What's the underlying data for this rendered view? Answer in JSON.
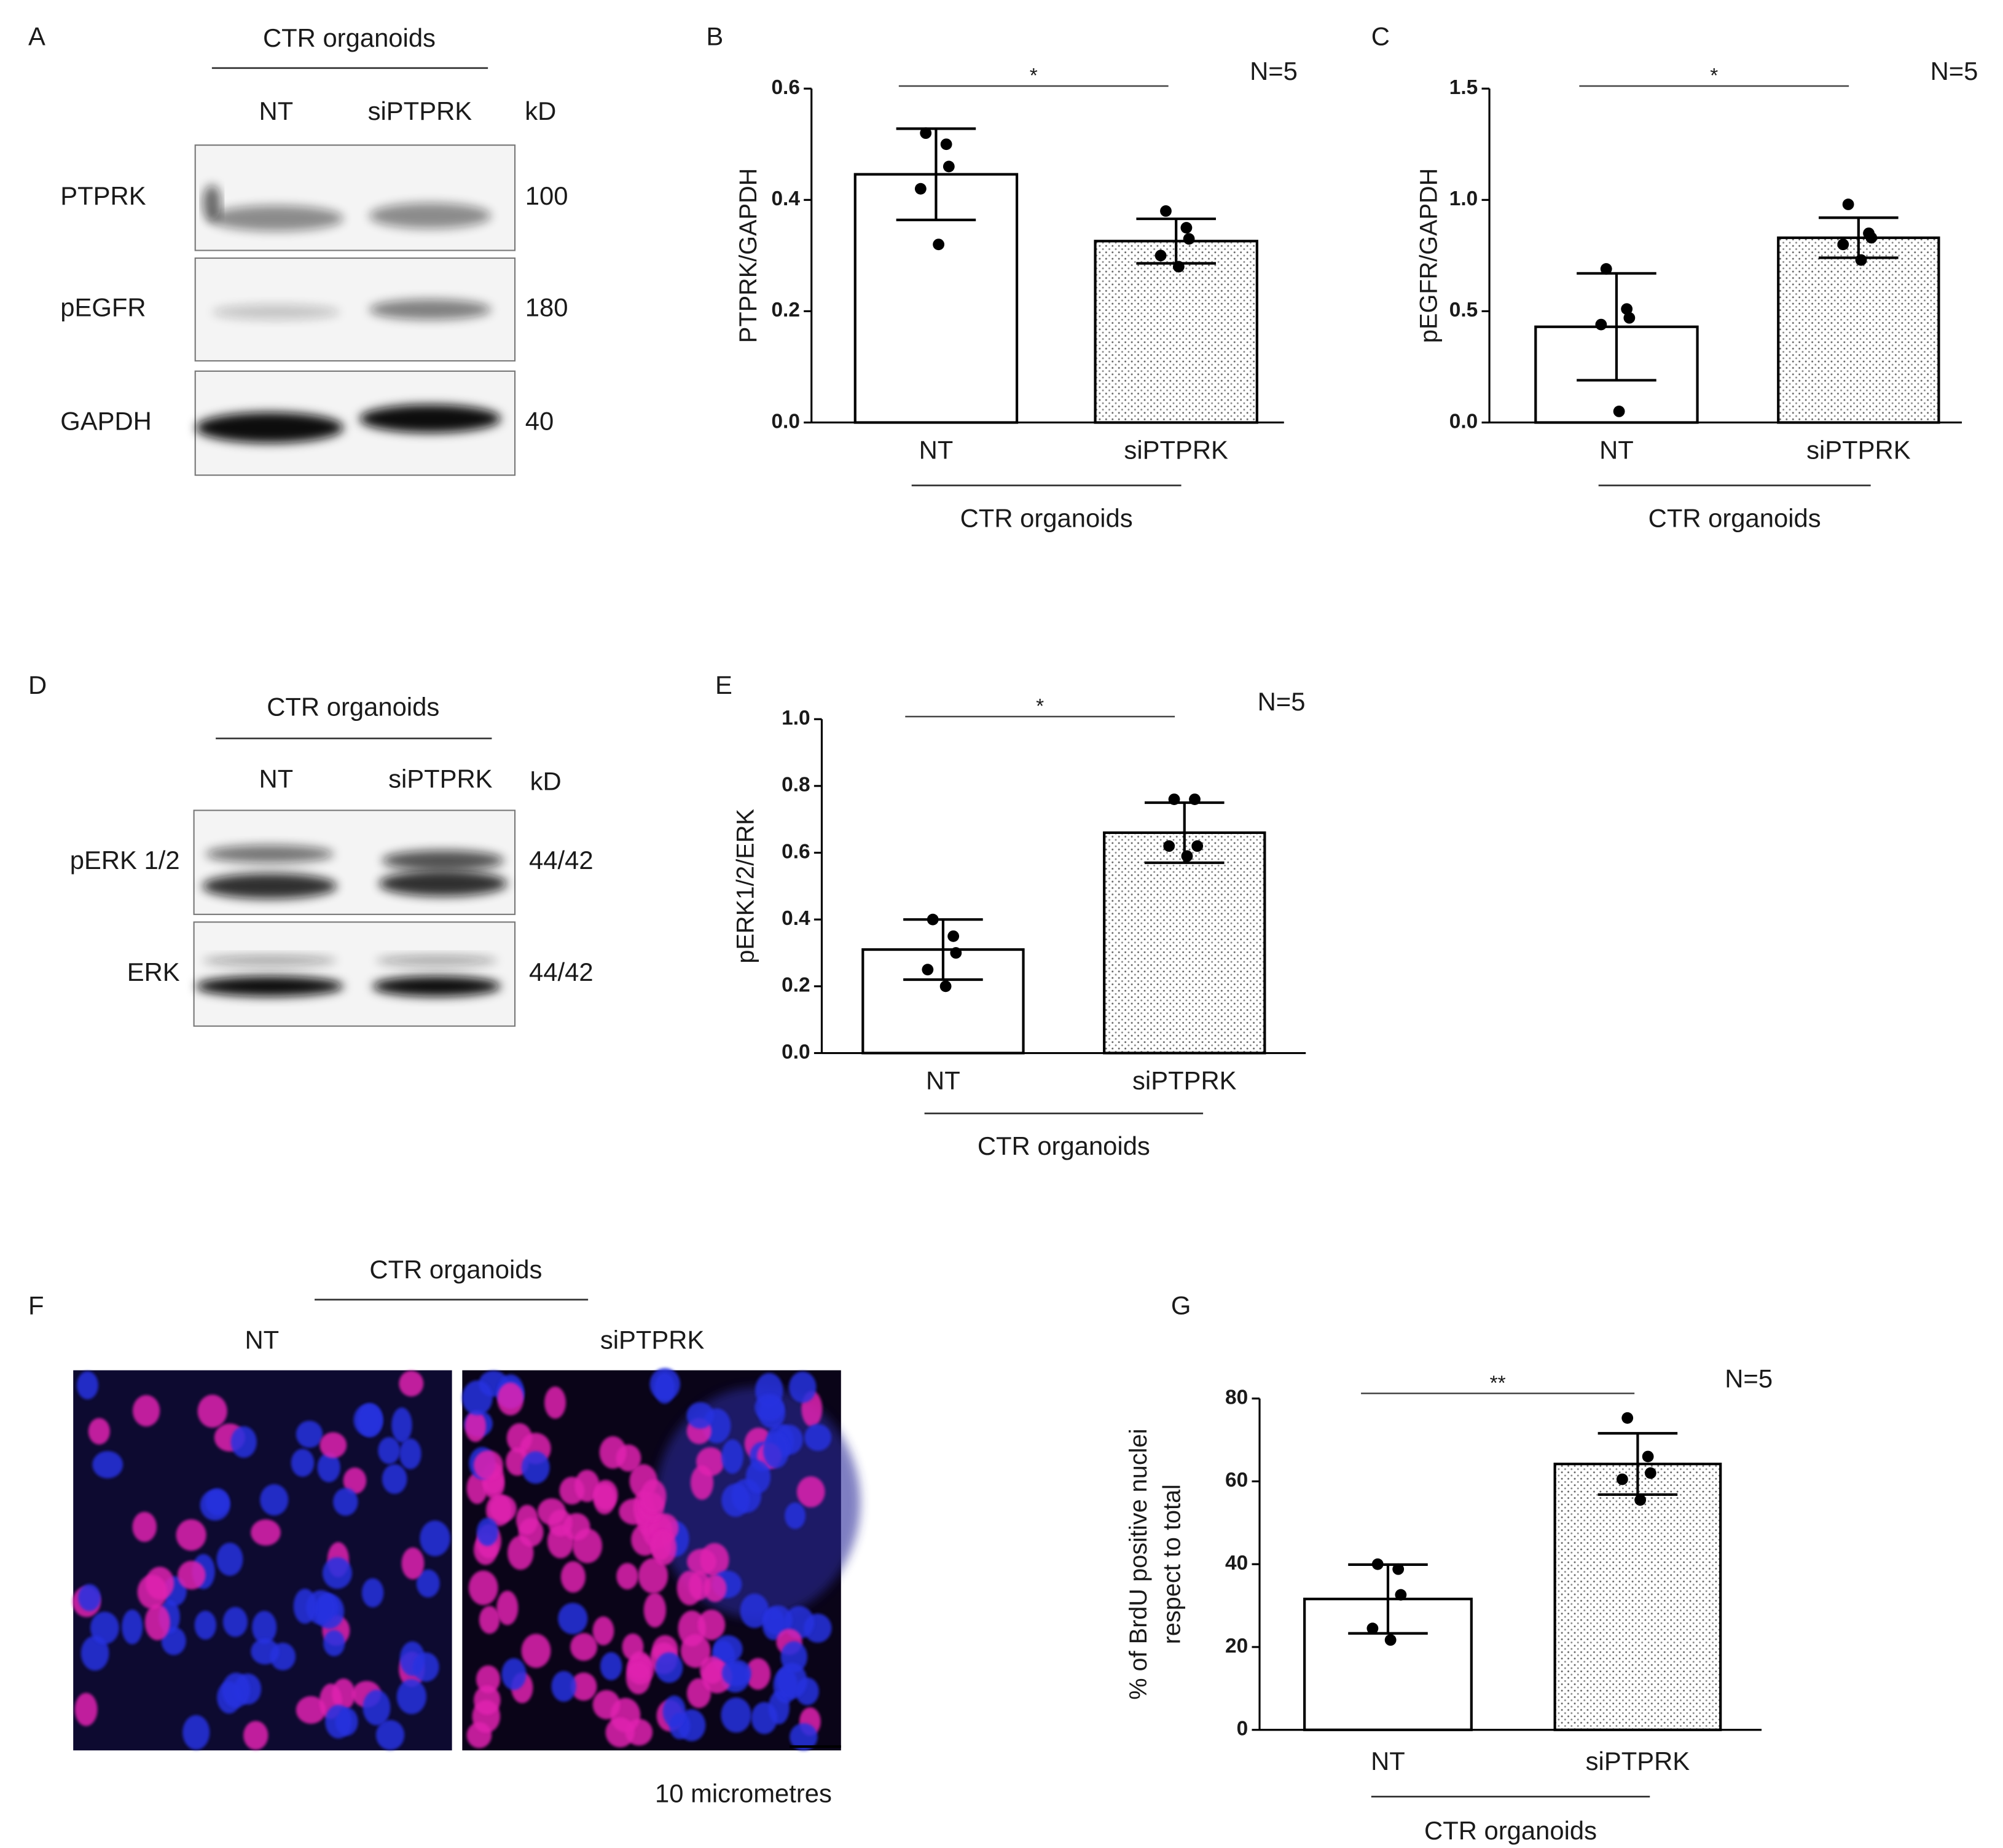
{
  "blots": [
    {
      "panel": "A",
      "group": "CTR organoids",
      "lanes": [
        "NT",
        "siPTPRK"
      ],
      "unit": "kD",
      "rows": [
        {
          "label": "PTPRK",
          "kd": "100"
        },
        {
          "label": "pEGFR",
          "kd": "180"
        },
        {
          "label": "GAPDH",
          "kd": "40"
        }
      ]
    },
    {
      "panel": "D",
      "group": "CTR organoids",
      "lanes": [
        "NT",
        "siPTPRK"
      ],
      "unit": "kD",
      "rows": [
        {
          "label": "pERK 1/2",
          "kd": "44/42"
        },
        {
          "label": "ERK",
          "kd": "44/42"
        }
      ]
    }
  ],
  "micrograph": {
    "panel": "F",
    "group": "CTR organoids",
    "conditions": [
      "NT",
      "siPTPRK"
    ],
    "scale_bar": "10 micrometres"
  },
  "chart_data": [
    {
      "type": "bar",
      "panel": "B",
      "ylabel": [
        "PTPRK/GAPDH"
      ],
      "group": "CTR organoids",
      "annotation": "N=5",
      "significance": "*",
      "categories": [
        "NT",
        "siPTPRK"
      ],
      "values": [
        0.446,
        0.326
      ],
      "errors": [
        0.082,
        0.04
      ],
      "points": [
        [
          0.52,
          0.5,
          0.46,
          0.42,
          0.32
        ],
        [
          0.38,
          0.35,
          0.33,
          0.3,
          0.28
        ]
      ],
      "bar_fill": [
        "plain",
        "dotted"
      ],
      "ylim": [
        0,
        0.6
      ],
      "yticks": [
        {
          "value": 0,
          "label": "0.0"
        },
        0.2,
        0.4,
        0.6
      ]
    },
    {
      "type": "bar",
      "panel": "C",
      "ylabel": [
        "pEGFR/GAPDH"
      ],
      "group": "CTR organoids",
      "annotation": "N=5",
      "significance": "*",
      "categories": [
        "NT",
        "siPTPRK"
      ],
      "values": [
        0.43,
        0.83
      ],
      "errors": [
        0.24,
        0.09
      ],
      "points": [
        [
          0.69,
          0.51,
          0.47,
          0.44,
          0.05
        ],
        [
          0.98,
          0.85,
          0.83,
          0.8,
          0.73
        ]
      ],
      "bar_fill": [
        "plain",
        "dotted"
      ],
      "ylim": [
        0,
        1.5
      ],
      "yticks": [
        {
          "value": 0,
          "label": "0.0"
        },
        0.5,
        {
          "value": 1,
          "label": "1.0"
        },
        1.5
      ]
    },
    {
      "type": "bar",
      "panel": "E",
      "ylabel": [
        "pERK1/2/ERK"
      ],
      "group": "CTR organoids",
      "annotation": "N=5",
      "significance": "*",
      "categories": [
        "NT",
        "siPTPRK"
      ],
      "values": [
        0.31,
        0.66
      ],
      "errors": [
        0.09,
        0.09
      ],
      "points": [
        [
          0.4,
          0.35,
          0.3,
          0.25,
          0.2
        ],
        [
          0.76,
          0.76,
          0.62,
          0.62,
          0.59
        ]
      ],
      "bar_fill": [
        "plain",
        "dotted"
      ],
      "ylim": [
        0,
        1
      ],
      "yticks": [
        {
          "value": 0,
          "label": "0.0"
        },
        0.2,
        0.4,
        0.6,
        0.8,
        {
          "value": 1,
          "label": "1.0"
        }
      ]
    },
    {
      "type": "bar",
      "panel": "G",
      "ylabel": [
        "% of BrdU positive nuclei",
        "respect to total"
      ],
      "group": "CTR organoids",
      "annotation": "N=5",
      "significance": "**",
      "categories": [
        "NT",
        "siPTPRK"
      ],
      "values": [
        31.6,
        64.2
      ],
      "errors": [
        8.3,
        7.4
      ],
      "points": [
        [
          40,
          38.8,
          32.6,
          24.5,
          21.7
        ],
        [
          75.3,
          66,
          62,
          60.5,
          55.5
        ]
      ],
      "bar_fill": [
        "plain",
        "dotted"
      ],
      "ylim": [
        0,
        80
      ],
      "yticks": [
        0,
        20,
        40,
        60,
        80
      ]
    }
  ]
}
